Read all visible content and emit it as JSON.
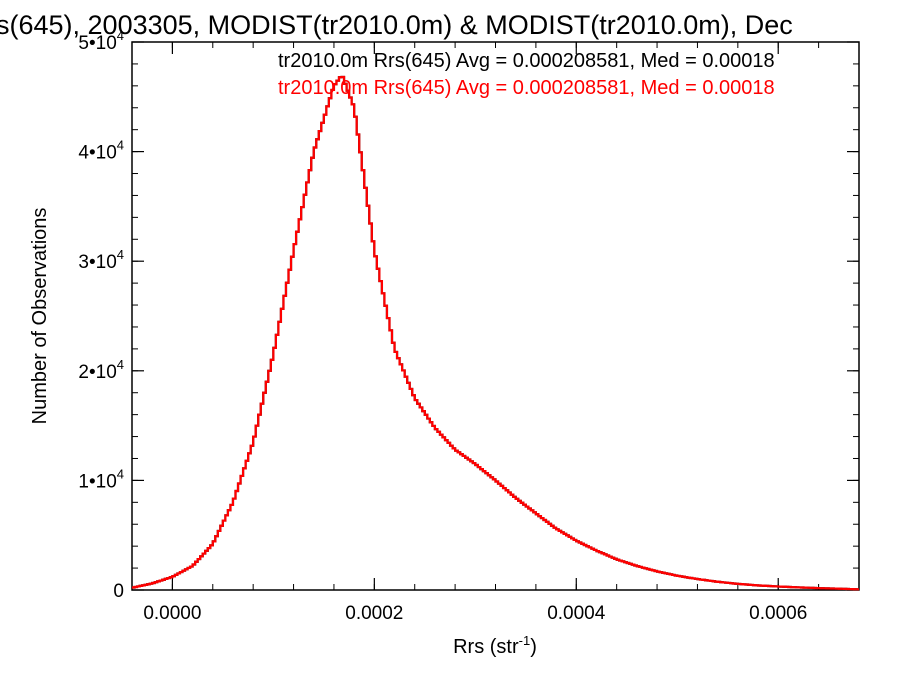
{
  "chart_data": {
    "type": "line",
    "title": "s(645), 2003305, MODIST(tr2010.0m) & MODIST(tr2010.0m), Dec",
    "xlabel": "Rrs (str",
    "xlabel_sup": "-1",
    "xlabel_close": ")",
    "ylabel": "Number of Observations",
    "xlim": [
      -4e-05,
      0.00068
    ],
    "ylim": [
      0,
      50000
    ],
    "x_ticks": [
      {
        "value": 0.0,
        "label": "0.0000"
      },
      {
        "value": 0.0002,
        "label": "0.0002"
      },
      {
        "value": 0.0004,
        "label": "0.0004"
      },
      {
        "value": 0.0006,
        "label": "0.0006"
      }
    ],
    "y_ticks": [
      {
        "value": 0,
        "label": "0"
      },
      {
        "value": 10000,
        "label": "1•10",
        "sup": "4"
      },
      {
        "value": 20000,
        "label": "2•10",
        "sup": "4"
      },
      {
        "value": 30000,
        "label": "3•10",
        "sup": "4"
      },
      {
        "value": 40000,
        "label": "4•10",
        "sup": "4"
      },
      {
        "value": 50000,
        "label": "5•10",
        "sup": "4"
      }
    ],
    "legend_placement": "top-right",
    "series": [
      {
        "name": "tr2010.0m Rrs(645) Avg = 0.000208581, Med = 0.00018",
        "color": "#000000",
        "hidden_under": true
      },
      {
        "name": "tr2010.0m Rrs(645) Avg = 0.000208581, Med = 0.00018",
        "color": "#ff0000"
      }
    ],
    "x": [
      -4e-05,
      -2e-05,
      0.0,
      2e-05,
      4e-05,
      6e-05,
      8e-05,
      0.0001,
      0.00012,
      0.00014,
      0.00016,
      0.000168,
      0.00018,
      0.0002,
      0.00022,
      0.00024,
      0.00026,
      0.00028,
      0.0003,
      0.00032,
      0.00034,
      0.00036,
      0.00038,
      0.0004,
      0.00042,
      0.00044,
      0.00046,
      0.00048,
      0.0005,
      0.00052,
      0.00054,
      0.00056,
      0.00058,
      0.0006,
      0.00062,
      0.00064,
      0.00066,
      0.00068
    ],
    "y": [
      200,
      600,
      1200,
      2200,
      4200,
      8000,
      13500,
      21500,
      31000,
      40000,
      46000,
      47000,
      44000,
      31000,
      22000,
      17500,
      14800,
      12800,
      11500,
      10000,
      8400,
      7000,
      5600,
      4500,
      3600,
      2800,
      2200,
      1700,
      1300,
      1000,
      750,
      560,
      420,
      320,
      240,
      170,
      120,
      60
    ]
  }
}
